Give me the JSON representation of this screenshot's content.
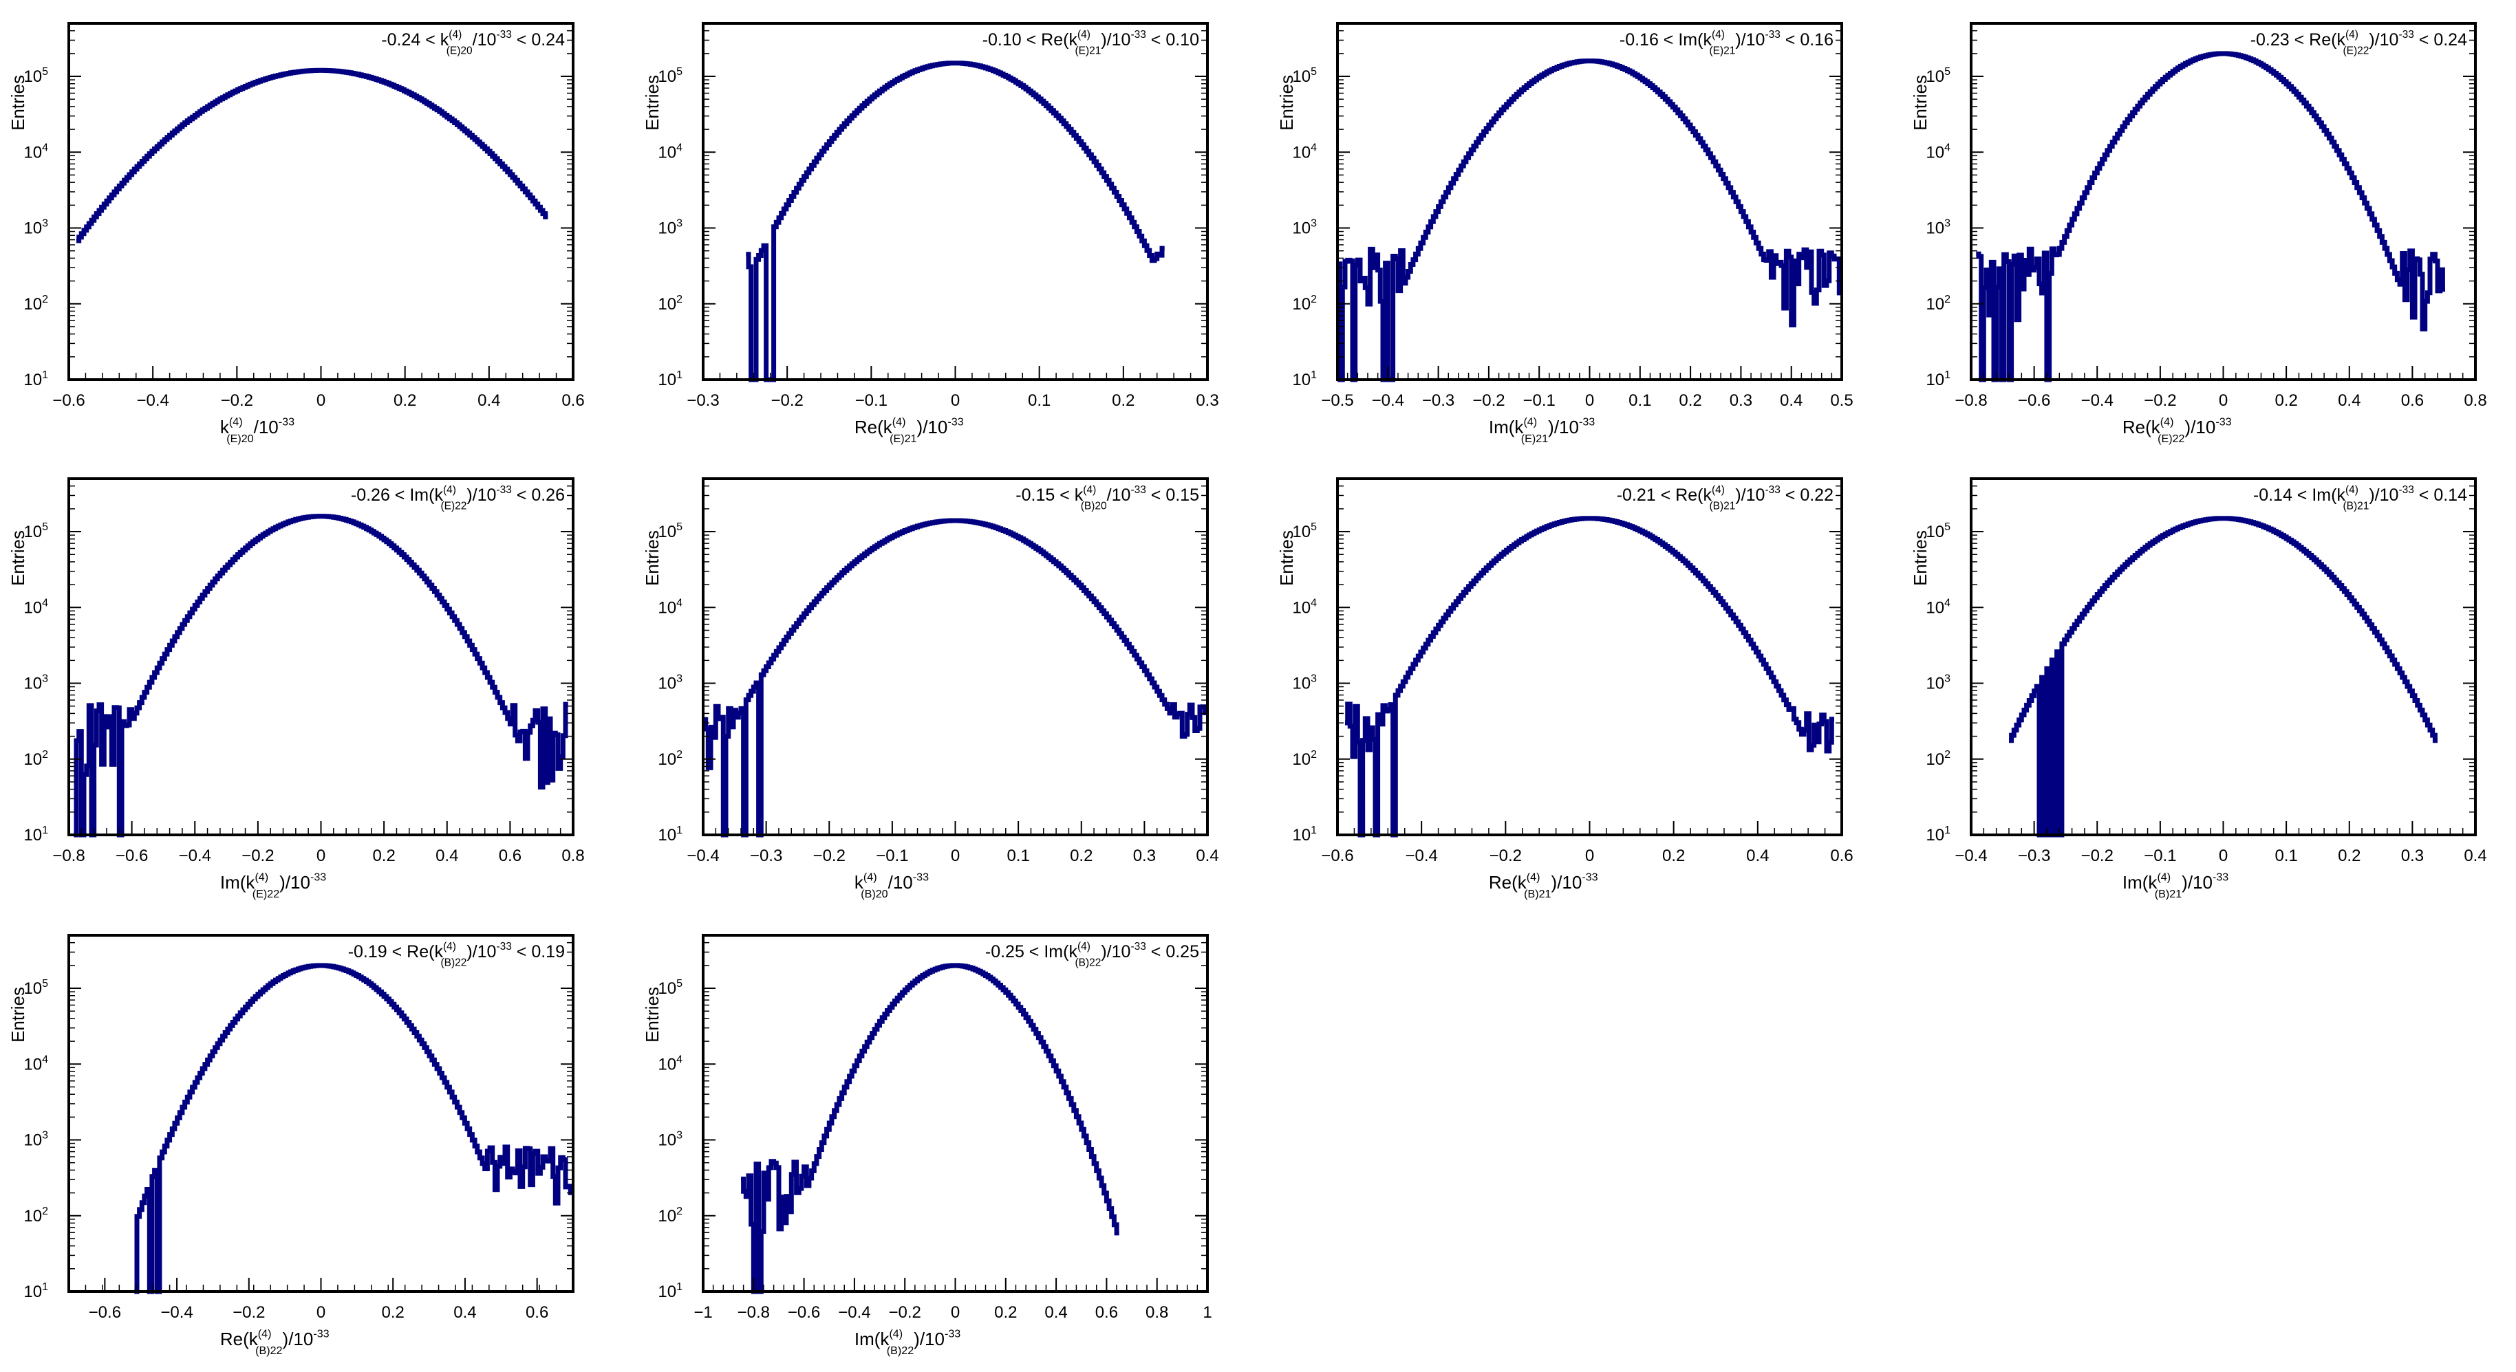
{
  "y_axis_label": "Entries",
  "colors": {
    "histogram": "#000080",
    "frame": "#000000"
  },
  "chart_data": [
    {
      "type": "histogram",
      "ylog": true,
      "ylim": [
        10,
        500000
      ],
      "xlim": [
        -0.6,
        0.6
      ],
      "xticks": [
        "−0.6",
        "−0.4",
        "−0.2",
        "0",
        "0.2",
        "0.4",
        "0.6"
      ],
      "xlabel": {
        "pre": "k",
        "sup": "(4)",
        "sub": "(E)20",
        "post": "/10",
        "exp": "-33"
      },
      "box": {
        "pre": "-0.24 < k",
        "sup": "(4)",
        "sub": "(E)20",
        "post": "/10",
        "exp": "-33",
        "tail": " < 0.24"
      },
      "peak": 120000,
      "sigma": 0.18,
      "support": [
        -0.58,
        0.54
      ],
      "floor": [
        -0.58,
        -0.5
      ],
      "noise": "left"
    },
    {
      "type": "histogram",
      "ylog": true,
      "ylim": [
        10,
        500000
      ],
      "xlim": [
        -0.3,
        0.3
      ],
      "xticks": [
        "−0.3",
        "−0.2",
        "−0.1",
        "0",
        "0.1",
        "0.2",
        "0.3"
      ],
      "xlabel": {
        "pre": "Re(k",
        "sup": "(4)",
        "sub": "(E)21",
        "post": ")/10",
        "exp": "-33"
      },
      "box": {
        "pre": "-0.10 < Re(k",
        "sup": "(4)",
        "sub": "(E)21",
        "post": ")/10",
        "exp": "-33",
        "tail": " < 0.10"
      },
      "peak": 150000,
      "sigma": 0.068,
      "support": [
        -0.25,
        0.25
      ],
      "floor": [
        -0.25,
        -0.2
      ],
      "noise": "both"
    },
    {
      "type": "histogram",
      "ylog": true,
      "ylim": [
        10,
        500000
      ],
      "xlim": [
        -0.5,
        0.5
      ],
      "xticks": [
        "−0.5",
        "−0.4",
        "−0.3",
        "−0.2",
        "−0.1",
        "0",
        "0.1",
        "0.2",
        "0.3",
        "0.4",
        "0.5"
      ],
      "xlabel": {
        "pre": "Im(k",
        "sup": "(4)",
        "sub": "(E)21",
        "post": ")/10",
        "exp": "-33"
      },
      "box": {
        "pre": "-0.16 < Im(k",
        "sup": "(4)",
        "sub": "(E)21",
        "post": ")/10",
        "exp": "-33",
        "tail": " < 0.16"
      },
      "peak": 160000,
      "sigma": 0.1,
      "support": [
        -0.5,
        0.5
      ],
      "floor": [
        -0.5,
        -0.35
      ],
      "noise": "both"
    },
    {
      "type": "histogram",
      "ylog": true,
      "ylim": [
        10,
        500000
      ],
      "xlim": [
        -0.8,
        0.8
      ],
      "xticks": [
        "−0.8",
        "−0.6",
        "−0.4",
        "−0.2",
        "0",
        "0.2",
        "0.4",
        "0.6",
        "0.8"
      ],
      "xlabel": {
        "pre": "Re(k",
        "sup": "(4)",
        "sub": "(E)22",
        "post": ")/10",
        "exp": "-33"
      },
      "box": {
        "pre": "-0.23 < Re(k",
        "sup": "(4)",
        "sub": "(E)22",
        "post": ")/10",
        "exp": "-33",
        "tail": " < 0.24"
      },
      "peak": 200000,
      "sigma": 0.15,
      "support": [
        -0.78,
        0.7
      ],
      "floor": [
        -0.78,
        -0.55
      ],
      "noise": "both"
    },
    {
      "type": "histogram",
      "ylog": true,
      "ylim": [
        10,
        500000
      ],
      "xlim": [
        -0.8,
        0.8
      ],
      "xticks": [
        "−0.8",
        "−0.6",
        "−0.4",
        "−0.2",
        "0",
        "0.2",
        "0.4",
        "0.6",
        "0.8"
      ],
      "xlabel": {
        "pre": "Im(k",
        "sup": "(4)",
        "sub": "(E)22",
        "post": ")/10",
        "exp": "-33"
      },
      "box": {
        "pre": "-0.26 < Im(k",
        "sup": "(4)",
        "sub": "(E)22",
        "post": ")/10",
        "exp": "-33",
        "tail": " < 0.26"
      },
      "peak": 160000,
      "sigma": 0.17,
      "support": [
        -0.78,
        0.78
      ],
      "floor": [
        -0.78,
        -0.6
      ],
      "noise": "both"
    },
    {
      "type": "histogram",
      "ylog": true,
      "ylim": [
        10,
        500000
      ],
      "xlim": [
        -0.4,
        0.4
      ],
      "xticks": [
        "−0.4",
        "−0.3",
        "−0.2",
        "−0.1",
        "0",
        "0.1",
        "0.2",
        "0.3",
        "0.4"
      ],
      "xlabel": {
        "pre": "k",
        "sup": "(4)",
        "sub": "(B)20",
        "post": "/10",
        "exp": "-33"
      },
      "box": {
        "pre": "-0.15 < k",
        "sup": "(4)",
        "sub": "(B)20",
        "post": "/10",
        "exp": "-33",
        "tail": " < 0.15"
      },
      "peak": 140000,
      "sigma": 0.1,
      "support": [
        -0.4,
        0.4
      ],
      "floor": [
        -0.4,
        -0.3
      ],
      "noise": "both"
    },
    {
      "type": "histogram",
      "ylog": true,
      "ylim": [
        10,
        500000
      ],
      "xlim": [
        -0.6,
        0.6
      ],
      "xticks": [
        "−0.6",
        "−0.4",
        "−0.2",
        "0",
        "0.2",
        "0.4",
        "0.6"
      ],
      "xlabel": {
        "pre": "Re(k",
        "sup": "(4)",
        "sub": "(B)21",
        "post": ")/10",
        "exp": "-33"
      },
      "box": {
        "pre": "-0.21 < Re(k",
        "sup": "(4)",
        "sub": "(B)21",
        "post": ")/10",
        "exp": "-33",
        "tail": " < 0.22"
      },
      "peak": 150000,
      "sigma": 0.14,
      "support": [
        -0.58,
        0.58
      ],
      "floor": [
        -0.58,
        -0.45
      ],
      "noise": "both"
    },
    {
      "type": "histogram",
      "ylog": true,
      "ylim": [
        10,
        500000
      ],
      "xlim": [
        -0.4,
        0.4
      ],
      "xticks": [
        "−0.4",
        "−0.3",
        "−0.2",
        "−0.1",
        "0",
        "0.1",
        "0.2",
        "0.3",
        "0.4"
      ],
      "xlabel": {
        "pre": "Im(k",
        "sup": "(4)",
        "sub": "(B)21",
        "post": ")/10",
        "exp": "-33"
      },
      "box": {
        "pre": "-0.14 < Im(k",
        "sup": "(4)",
        "sub": "(B)21",
        "post": ")/10",
        "exp": "-33",
        "tail": " < 0.14"
      },
      "peak": 150000,
      "sigma": 0.092,
      "support": [
        -0.34,
        0.34
      ],
      "floor": [
        -0.34,
        -0.25
      ],
      "noise": "none"
    },
    {
      "type": "histogram",
      "ylog": true,
      "ylim": [
        10,
        500000
      ],
      "xlim": [
        -0.7,
        0.7
      ],
      "xticks": [
        "−0.6",
        "−0.4",
        "−0.2",
        "0",
        "0.2",
        "0.4",
        "0.6"
      ],
      "xlabel": {
        "pre": "Re(k",
        "sup": "(4)",
        "sub": "(B)22",
        "post": ")/10",
        "exp": "-33"
      },
      "box": {
        "pre": "-0.19 < Re(k",
        "sup": "(4)",
        "sub": "(B)22",
        "post": ")/10",
        "exp": "-33",
        "tail": " < 0.19"
      },
      "peak": 200000,
      "sigma": 0.13,
      "support": [
        -0.52,
        0.7
      ],
      "floor": [
        -0.52,
        -0.42
      ],
      "noise": "right"
    },
    {
      "type": "histogram",
      "ylog": true,
      "ylim": [
        10,
        500000
      ],
      "xlim": [
        -1,
        1
      ],
      "xticks": [
        "−1",
        "−0.8",
        "−0.6",
        "−0.4",
        "−0.2",
        "0",
        "0.2",
        "0.4",
        "0.6",
        "0.8",
        "1"
      ],
      "xlabel": {
        "pre": "Im(k",
        "sup": "(4)",
        "sub": "(B)22",
        "post": ")/10",
        "exp": "-33"
      },
      "box": {
        "pre": "-0.25 < Im(k",
        "sup": "(4)",
        "sub": "(B)22",
        "post": ")/10",
        "exp": "-33",
        "tail": " < 0.25"
      },
      "peak": 200000,
      "sigma": 0.16,
      "support": [
        -0.85,
        0.65
      ],
      "floor": [
        -0.85,
        -0.6
      ],
      "noise": "left"
    }
  ]
}
